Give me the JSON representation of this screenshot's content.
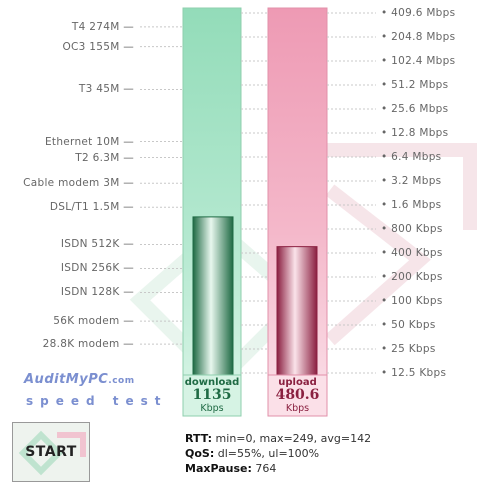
{
  "colors": {
    "download_fill": "#9ee0c0",
    "download_light": "#c4efdb",
    "download_bar": "#2c7d56",
    "upload_fill": "#f1a6bd",
    "upload_light": "#f8d0dc",
    "upload_bar": "#b83560",
    "scale_line": "#c8c8c8",
    "logo": "#7b8fd0"
  },
  "left_scale": [
    {
      "label": "T4 274M",
      "mbps": 274
    },
    {
      "label": "OC3 155M",
      "mbps": 155
    },
    {
      "label": "T3 45M",
      "mbps": 45
    },
    {
      "label": "Ethernet 10M",
      "mbps": 10
    },
    {
      "label": "T2 6.3M",
      "mbps": 6.3
    },
    {
      "label": "Cable modem 3M",
      "mbps": 3
    },
    {
      "label": "DSL/T1 1.5M",
      "mbps": 1.5
    },
    {
      "label": "ISDN 512K",
      "mbps": 0.512
    },
    {
      "label": "ISDN 256K",
      "mbps": 0.256
    },
    {
      "label": "ISDN 128K",
      "mbps": 0.128
    },
    {
      "label": "56K modem",
      "mbps": 0.056
    },
    {
      "label": "28.8K modem",
      "mbps": 0.0288
    }
  ],
  "right_scale": [
    {
      "label": "409.6 Mbps",
      "mbps": 409.6
    },
    {
      "label": "204.8 Mbps",
      "mbps": 204.8
    },
    {
      "label": "102.4 Mbps",
      "mbps": 102.4
    },
    {
      "label": "51.2 Mbps",
      "mbps": 51.2
    },
    {
      "label": "25.6 Mbps",
      "mbps": 25.6
    },
    {
      "label": "12.8 Mbps",
      "mbps": 12.8
    },
    {
      "label": "6.4 Mbps",
      "mbps": 6.4
    },
    {
      "label": "3.2 Mbps",
      "mbps": 3.2
    },
    {
      "label": "1.6 Mbps",
      "mbps": 1.6
    },
    {
      "label": "800 Kbps",
      "mbps": 0.8
    },
    {
      "label": "400 Kbps",
      "mbps": 0.4
    },
    {
      "label": "200 Kbps",
      "mbps": 0.2
    },
    {
      "label": "100 Kbps",
      "mbps": 0.1
    },
    {
      "label": "50 Kbps",
      "mbps": 0.05
    },
    {
      "label": "25 Kbps",
      "mbps": 0.025
    },
    {
      "label": "12.5 Kbps",
      "mbps": 0.0125
    }
  ],
  "meters": {
    "download": {
      "label": "download",
      "value": "1135",
      "unit": "Kbps",
      "mbps": 1.135
    },
    "upload": {
      "label": "upload",
      "value": "480.6",
      "unit": "Kbps",
      "mbps": 0.4806
    }
  },
  "logo": {
    "name": "AuditMyPC",
    "domain": ".com",
    "tagline": "speed test"
  },
  "start_button": {
    "label": "START"
  },
  "stats": {
    "rtt_label": "RTT:",
    "rtt_value": " min=0, max=249, avg=142",
    "qos_label": "QoS:",
    "qos_value": " dl=55%, ul=100%",
    "maxpause_label": "MaxPause:",
    "maxpause_value": " 764"
  }
}
